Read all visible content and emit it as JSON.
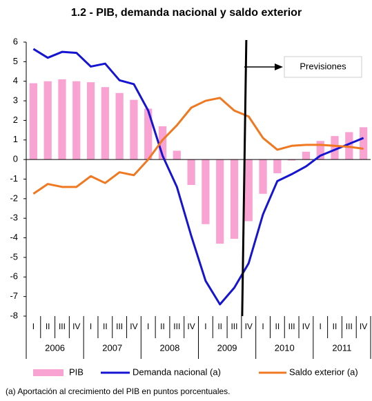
{
  "chart_data": {
    "type": "bar",
    "title": "1.2 - PIB, demanda nacional y saldo exterior",
    "categories": [
      "I",
      "II",
      "III",
      "IV",
      "I",
      "II",
      "III",
      "IV",
      "I",
      "II",
      "III",
      "IV",
      "I",
      "II",
      "III",
      "IV",
      "I",
      "II",
      "III",
      "IV",
      "I",
      "II",
      "III",
      "IV"
    ],
    "years": [
      "2006",
      "2007",
      "2008",
      "2009",
      "2010",
      "2011"
    ],
    "series": [
      {
        "name": "PIB",
        "type": "bar",
        "color": "#f9a3d2",
        "values": [
          3.9,
          4.0,
          4.1,
          4.0,
          3.95,
          3.7,
          3.4,
          3.05,
          2.6,
          1.7,
          0.45,
          -1.3,
          -3.3,
          -4.3,
          -4.05,
          -3.15,
          -1.75,
          -0.7,
          -0.05,
          0.4,
          0.95,
          1.2,
          1.4,
          1.65
        ]
      },
      {
        "name": "Demanda nacional (a)",
        "type": "line",
        "color": "#1414d2",
        "values": [
          5.65,
          5.2,
          5.5,
          5.45,
          4.75,
          4.9,
          4.05,
          3.85,
          2.5,
          0.2,
          -1.4,
          -3.9,
          -6.2,
          -7.4,
          -6.55,
          -5.3,
          -2.8,
          -1.1,
          -0.75,
          -0.35,
          0.2,
          0.5,
          0.8,
          1.1
        ]
      },
      {
        "name": "Saldo exterior (a)",
        "type": "line",
        "color": "#f07820",
        "values": [
          -1.75,
          -1.25,
          -1.4,
          -1.4,
          -0.85,
          -1.2,
          -0.65,
          -0.8,
          0.0,
          1.0,
          1.75,
          2.65,
          3.0,
          3.15,
          2.5,
          2.2,
          1.1,
          0.5,
          0.7,
          0.75,
          0.75,
          0.7,
          0.65,
          0.55
        ]
      }
    ],
    "ylim": [
      -8,
      6
    ],
    "yticks": [
      -8,
      -7,
      -6,
      -5,
      -4,
      -3,
      -2,
      -1,
      0,
      1,
      2,
      3,
      4,
      5,
      6
    ],
    "grid": false,
    "annotation": "Previsiones",
    "footnote": "(a) Aportación al crecimiento del PIB en puntos porcentuales."
  }
}
